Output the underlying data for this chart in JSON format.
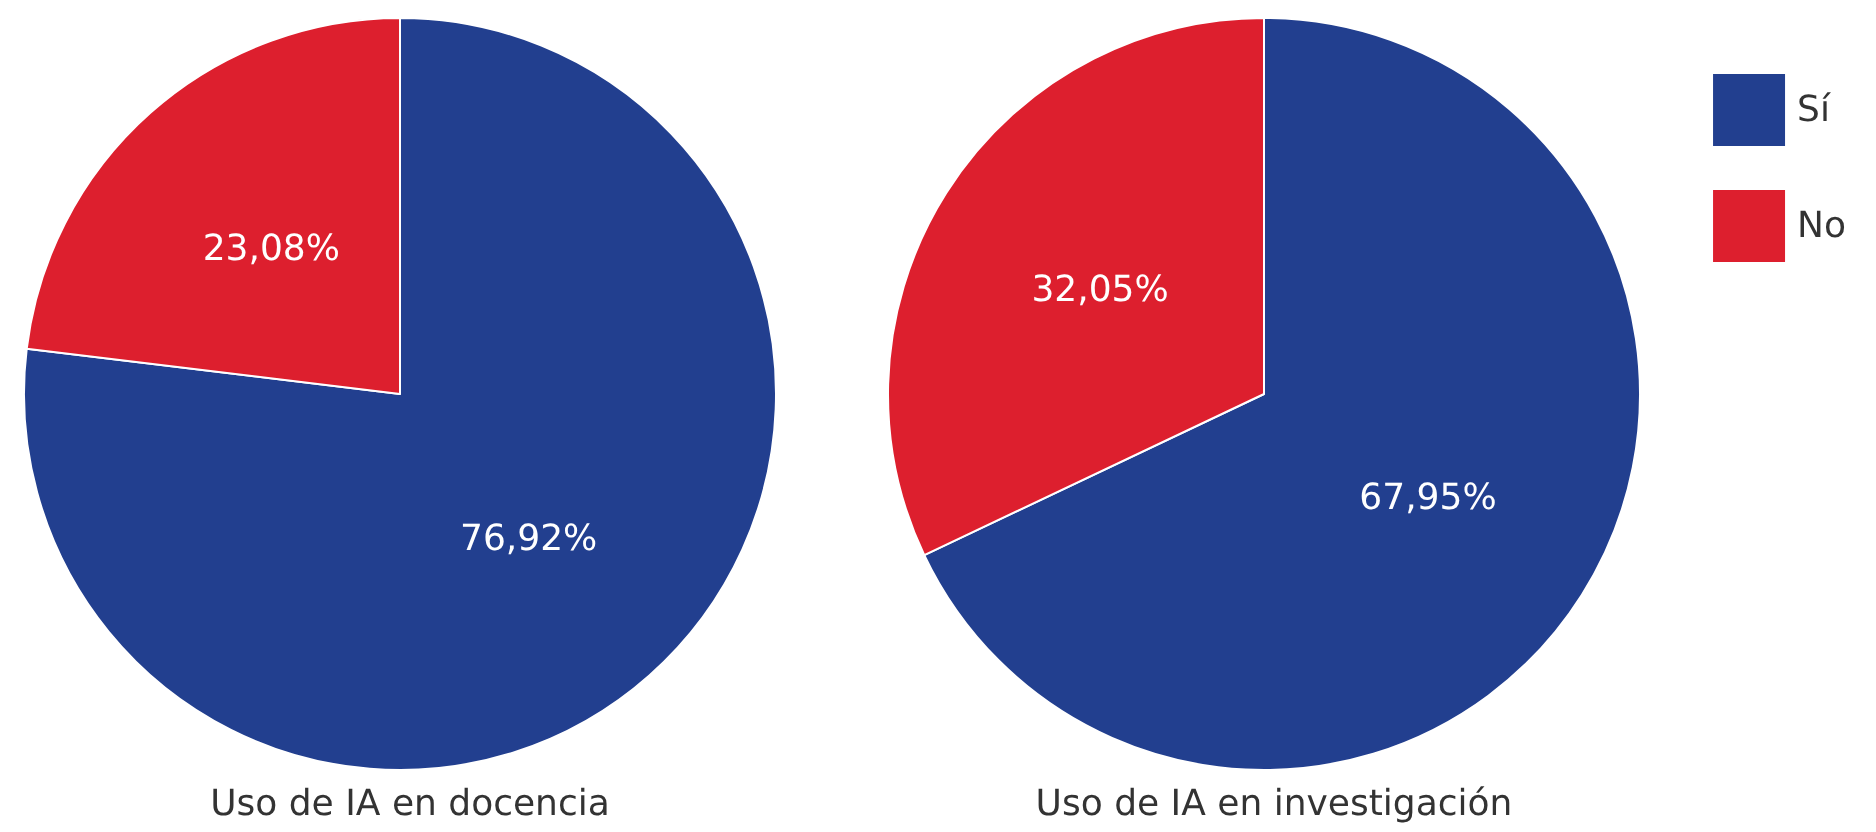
{
  "chart_data": {
    "type": "pie",
    "categories": [
      "Sí",
      "No"
    ],
    "colors": [
      "#223f8f",
      "#dd1f2e"
    ],
    "legend": "top right",
    "series": [
      {
        "name": "Uso de IA en docencia",
        "values": [
          76.92,
          23.08
        ],
        "value_labels": [
          "76,92%",
          "23,08%"
        ]
      },
      {
        "name": "Uso de IA en investigación",
        "values": [
          67.95,
          32.05
        ],
        "value_labels": [
          "67,95%",
          "32,05%"
        ]
      }
    ]
  }
}
